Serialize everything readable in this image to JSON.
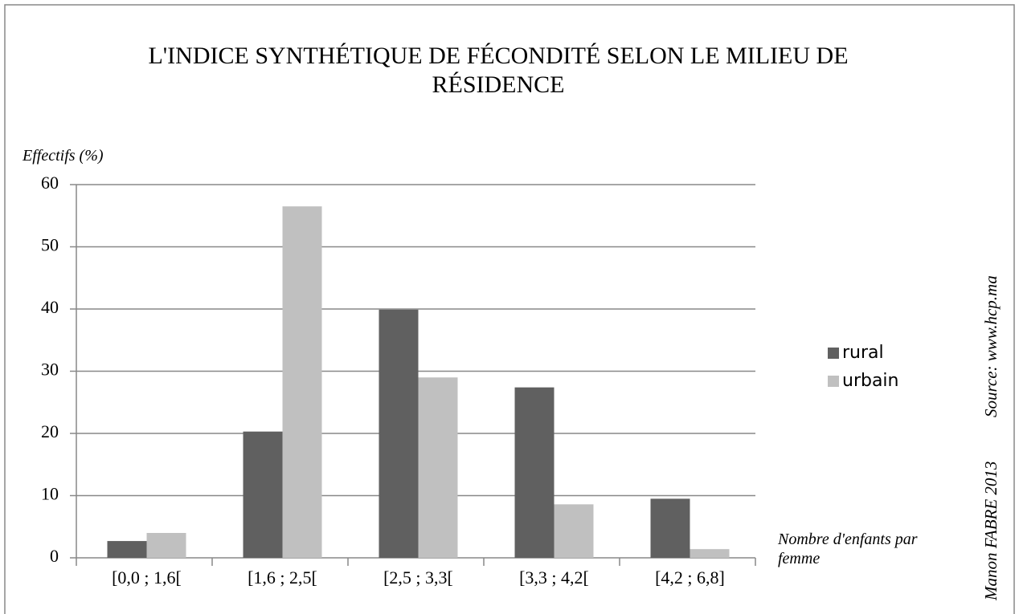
{
  "chart_data": {
    "type": "bar",
    "title": "L'INDICE SYNTHÉTIQUE DE FÉCONDITÉ SELON LE MILIEU DE RÉSIDENCE",
    "y_label": "Effectifs (%)",
    "x_label": "Nombre d'enfants par femme",
    "annotations": [
      "Manon FABRE 2013",
      "Source: www.hcp.ma"
    ],
    "categories": [
      "[0,0 ; 1,6[",
      "[1,6 ; 2,5[",
      "[2,5 ; 3,3[",
      "[3,3 ; 4,2[",
      "[4,2 ; 6,8]"
    ],
    "series": [
      {
        "name": "rural",
        "color": "#606060",
        "values": [
          2.7,
          20.3,
          39.9,
          27.4,
          9.5
        ]
      },
      {
        "name": "urbain",
        "color": "#c0c0c0",
        "values": [
          4.0,
          56.5,
          29.0,
          8.6,
          1.4
        ]
      }
    ],
    "ylim": [
      0,
      60
    ],
    "yticks": [
      0,
      10,
      20,
      30,
      40,
      50,
      60
    ],
    "grid": true,
    "legend": "right"
  }
}
